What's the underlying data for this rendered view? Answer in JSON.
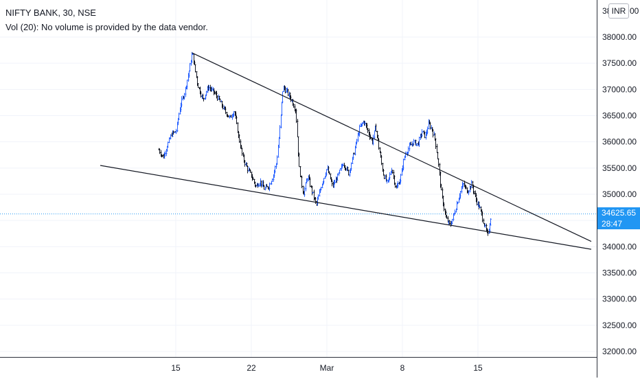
{
  "header": {
    "symbol_line": "NIFTY BANK, 30, NSE",
    "volume_line": "Vol (20): No volume is provided by the data vendor."
  },
  "price_axis": {
    "currency": "INR",
    "top_partial_label": "38",
    "top_partial_suffix": "00"
  },
  "last_price": {
    "value": "34625.65",
    "countdown": "28:47",
    "color": "#2196f3"
  },
  "colors": {
    "up": "#2962ff",
    "down": "#131722",
    "trendline": "#131722"
  },
  "chart_data": {
    "type": "candlestick",
    "symbol": "NIFTY BANK",
    "interval": "30",
    "exchange": "NSE",
    "x_ticks": [
      {
        "label": "15",
        "day": 15
      },
      {
        "label": "22",
        "day": 22
      },
      {
        "label": "Mar",
        "day": 29
      },
      {
        "label": "8",
        "day": 36
      },
      {
        "label": "15",
        "day": 43
      }
    ],
    "y_ticks": [
      32000,
      32500,
      33000,
      33500,
      34000,
      34500,
      35000,
      35500,
      36000,
      36500,
      37000,
      37500,
      38000
    ],
    "ylim": [
      31950,
      38400
    ],
    "last_price": 34625.65,
    "price_path": [
      [
        13.4,
        35850
      ],
      [
        13.8,
        35700
      ],
      [
        14.2,
        35950
      ],
      [
        14.6,
        36150
      ],
      [
        15.0,
        36200
      ],
      [
        15.4,
        36700
      ],
      [
        15.8,
        36950
      ],
      [
        16.2,
        37350
      ],
      [
        16.5,
        37700
      ],
      [
        17.0,
        37100
      ],
      [
        17.5,
        36800
      ],
      [
        18.0,
        37050
      ],
      [
        18.5,
        36950
      ],
      [
        19.0,
        36800
      ],
      [
        19.5,
        36600
      ],
      [
        20.0,
        36450
      ],
      [
        20.4,
        36600
      ],
      [
        20.8,
        36100
      ],
      [
        21.2,
        35700
      ],
      [
        21.6,
        35500
      ],
      [
        22.0,
        35350
      ],
      [
        22.4,
        35150
      ],
      [
        22.8,
        35250
      ],
      [
        23.2,
        35100
      ],
      [
        23.6,
        35150
      ],
      [
        24.0,
        35350
      ],
      [
        24.3,
        35600
      ],
      [
        24.6,
        36200
      ],
      [
        24.9,
        37050
      ],
      [
        25.3,
        36950
      ],
      [
        25.7,
        36800
      ],
      [
        26.1,
        36600
      ],
      [
        26.4,
        35500
      ],
      [
        26.8,
        35000
      ],
      [
        27.2,
        35350
      ],
      [
        27.6,
        35050
      ],
      [
        28.0,
        34800
      ],
      [
        28.5,
        35200
      ],
      [
        29.0,
        35500
      ],
      [
        29.5,
        35150
      ],
      [
        30.0,
        35350
      ],
      [
        30.5,
        35600
      ],
      [
        31.0,
        35400
      ],
      [
        31.5,
        35800
      ],
      [
        32.0,
        36250
      ],
      [
        32.4,
        36400
      ],
      [
        32.8,
        36200
      ],
      [
        33.2,
        36000
      ],
      [
        33.5,
        36300
      ],
      [
        33.8,
        35900
      ],
      [
        34.2,
        35400
      ],
      [
        34.6,
        35200
      ],
      [
        35.0,
        35500
      ],
      [
        35.4,
        35100
      ],
      [
        35.8,
        35300
      ],
      [
        36.2,
        35750
      ],
      [
        36.6,
        35900
      ],
      [
        37.0,
        36000
      ],
      [
        37.4,
        35950
      ],
      [
        37.8,
        36200
      ],
      [
        38.1,
        36100
      ],
      [
        38.4,
        36350
      ],
      [
        38.7,
        36250
      ],
      [
        39.0,
        36050
      ],
      [
        39.3,
        35600
      ],
      [
        39.6,
        35000
      ],
      [
        40.0,
        34550
      ],
      [
        40.4,
        34400
      ],
      [
        40.8,
        34650
      ],
      [
        41.2,
        34950
      ],
      [
        41.6,
        35200
      ],
      [
        42.0,
        35050
      ],
      [
        42.4,
        35200
      ],
      [
        42.8,
        34900
      ],
      [
        43.2,
        34700
      ],
      [
        43.6,
        34400
      ],
      [
        43.9,
        34200
      ],
      [
        44.2,
        34600
      ]
    ],
    "trendlines": [
      {
        "name": "upper",
        "points": [
          [
            16.5,
            37700
          ],
          [
            53.5,
            34100
          ]
        ]
      },
      {
        "name": "lower",
        "points": [
          [
            8.0,
            35550
          ],
          [
            53.5,
            33950
          ]
        ]
      }
    ],
    "grid": true,
    "legend": "top-left"
  }
}
